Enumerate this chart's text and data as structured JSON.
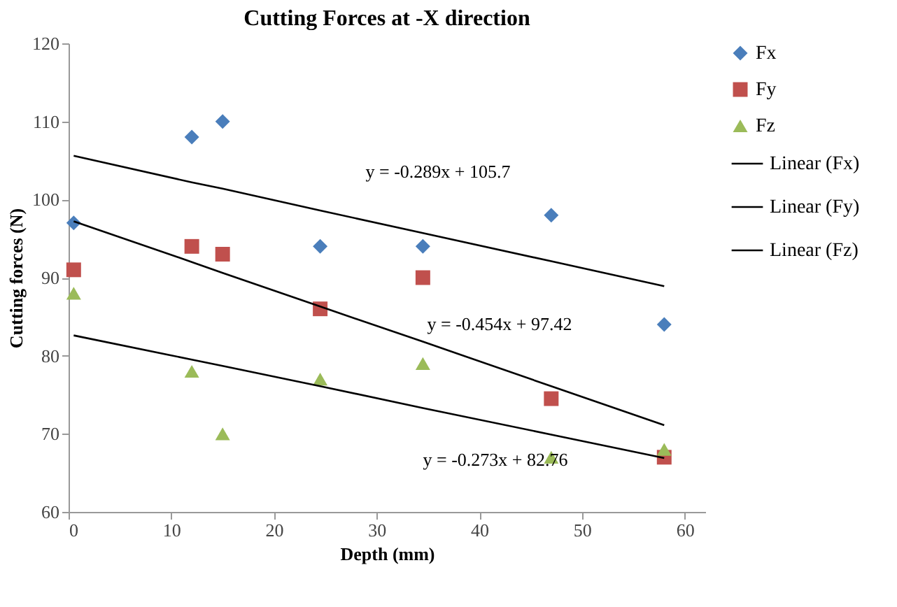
{
  "chart_data": {
    "type": "scatter",
    "title": "Cutting Forces at -X direction",
    "xlabel": "Depth (mm)",
    "ylabel": "Cutting forces (N)",
    "x": [
      0.5,
      12,
      15,
      24.5,
      34.5,
      47,
      58
    ],
    "series": [
      {
        "name": "Fx",
        "color": "#4a7ebb",
        "marker": "diamond",
        "values": [
          97,
          108,
          110,
          94,
          94,
          98,
          84
        ]
      },
      {
        "name": "Fy",
        "color": "#c0504d",
        "marker": "square",
        "values": [
          91,
          94,
          93,
          86,
          90,
          74.5,
          67
        ]
      },
      {
        "name": "Fz",
        "color": "#9bbb59",
        "marker": "triangle",
        "values": [
          88,
          78,
          70,
          77,
          79,
          67,
          68
        ]
      },
      {
        "name": "Linear (Fx)",
        "type": "line",
        "color": "#000000",
        "marker": "none",
        "line_style": "solid",
        "values": [
          105.6,
          102.2,
          101.4,
          98.6,
          95.7,
          92.1,
          88.9
        ]
      },
      {
        "name": "Linear (Fy)",
        "type": "line",
        "color": "#000000",
        "marker": "none",
        "line_style": "solid",
        "values": [
          97.2,
          92.0,
          90.6,
          86.3,
          81.8,
          76.1,
          71.1
        ]
      },
      {
        "name": "Linear (Fz)",
        "type": "line",
        "color": "#000000",
        "marker": "none",
        "line_style": "solid",
        "values": [
          82.6,
          79.5,
          78.7,
          76.1,
          73.3,
          69.9,
          66.9
        ]
      }
    ],
    "annotations": [
      "y = -0.289x + 105.7",
      "y = -0.454x + 97.42",
      "y = -0.273x + 82.76"
    ],
    "xlim": [
      0,
      62
    ],
    "xticks": [
      0,
      10,
      20,
      30,
      40,
      50,
      60
    ],
    "ylim": [
      60,
      120
    ],
    "yticks": [
      60,
      70,
      80,
      90,
      100,
      110,
      120
    ],
    "grid": false,
    "legend": "right"
  }
}
